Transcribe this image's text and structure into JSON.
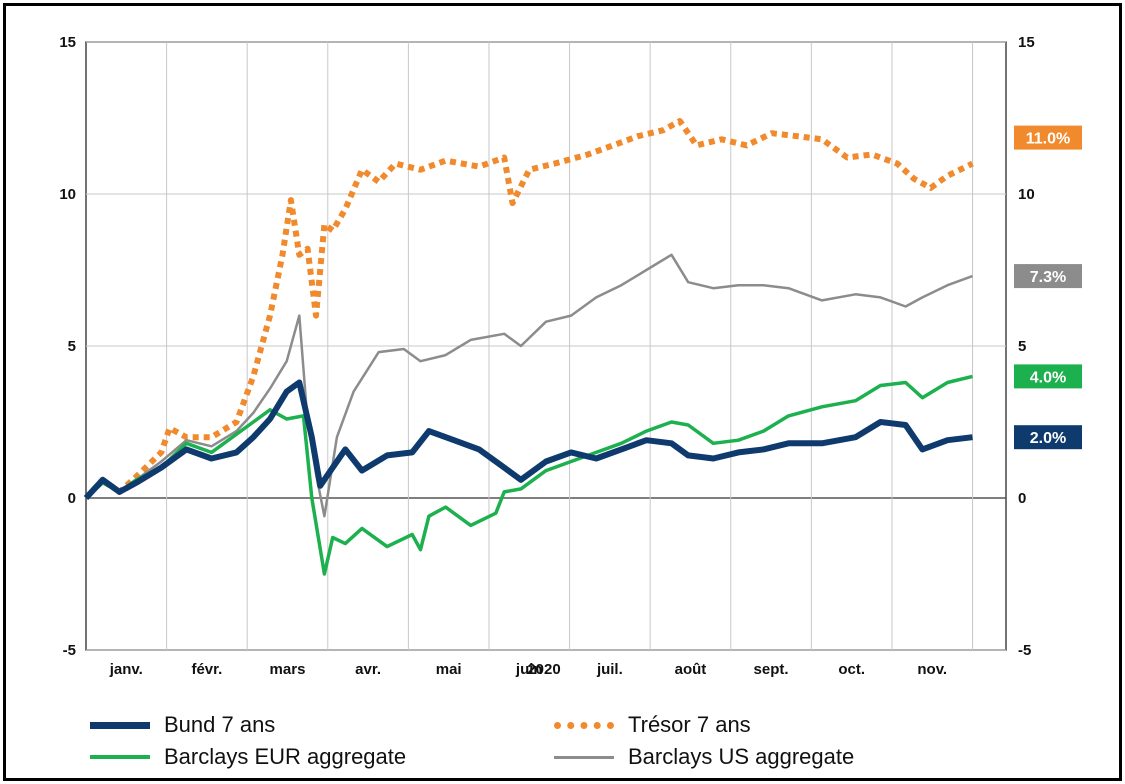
{
  "chart_data": {
    "type": "line",
    "xlabel": "2020",
    "ylabel": "",
    "ylim": [
      -5,
      15
    ],
    "yticks": [
      "-5",
      "0",
      "5",
      "10",
      "15"
    ],
    "xlim": [
      0,
      11
    ],
    "categories": [
      "janv.",
      "févr.",
      "mars",
      "avr.",
      "mai",
      "juin",
      "juil.",
      "août",
      "sept.",
      "oct.",
      "nov."
    ],
    "grid": true,
    "legend_position": "bottom",
    "series": [
      {
        "name": "Bund 7 ans",
        "color": "#0e3a6e",
        "style": "solid-thick",
        "end_label": "2.0%",
        "x": [
          0,
          0.2,
          0.4,
          0.6,
          0.9,
          1.2,
          1.5,
          1.8,
          2.0,
          2.2,
          2.4,
          2.55,
          2.7,
          2.8,
          2.95,
          3.1,
          3.3,
          3.6,
          3.9,
          4.1,
          4.4,
          4.7,
          5.0,
          5.2,
          5.5,
          5.8,
          6.1,
          6.4,
          6.7,
          7.0,
          7.2,
          7.5,
          7.8,
          8.1,
          8.4,
          8.8,
          9.2,
          9.5,
          9.8,
          10.0,
          10.3,
          10.6
        ],
        "y": [
          0,
          0.6,
          0.2,
          0.5,
          1.0,
          1.6,
          1.3,
          1.5,
          2.0,
          2.6,
          3.5,
          3.8,
          2.0,
          0.4,
          1.0,
          1.6,
          0.9,
          1.4,
          1.5,
          2.2,
          1.9,
          1.6,
          1.0,
          0.6,
          1.2,
          1.5,
          1.3,
          1.6,
          1.9,
          1.8,
          1.4,
          1.3,
          1.5,
          1.6,
          1.8,
          1.8,
          2.0,
          2.5,
          2.4,
          1.6,
          1.9,
          2.0
        ]
      },
      {
        "name": "Trésor 7 ans",
        "color": "#f08a2c",
        "style": "dotted-thick",
        "end_label": "11.0%",
        "x": [
          0,
          0.2,
          0.4,
          0.6,
          0.9,
          1.0,
          1.2,
          1.5,
          1.8,
          2.0,
          2.2,
          2.35,
          2.45,
          2.55,
          2.65,
          2.75,
          2.85,
          2.95,
          3.1,
          3.3,
          3.5,
          3.7,
          4.0,
          4.3,
          4.7,
          5.0,
          5.1,
          5.3,
          5.6,
          6.0,
          6.3,
          6.6,
          6.9,
          7.1,
          7.3,
          7.6,
          7.9,
          8.2,
          8.5,
          8.8,
          9.1,
          9.4,
          9.7,
          9.9,
          10.1,
          10.3,
          10.6
        ],
        "y": [
          0,
          0.6,
          0.2,
          0.7,
          1.5,
          2.3,
          2.0,
          2.0,
          2.5,
          4.0,
          6.0,
          8.0,
          9.8,
          8.0,
          8.2,
          6.0,
          9.0,
          8.8,
          9.5,
          10.8,
          10.4,
          11.0,
          10.8,
          11.1,
          10.9,
          11.2,
          9.7,
          10.8,
          11.0,
          11.3,
          11.6,
          11.9,
          12.1,
          12.4,
          11.6,
          11.8,
          11.6,
          12.0,
          11.9,
          11.8,
          11.2,
          11.3,
          11.0,
          10.5,
          10.2,
          10.6,
          11.0
        ]
      },
      {
        "name": "Barclays EUR aggregate",
        "color": "#1db04e",
        "style": "solid",
        "end_label": "4.0%",
        "x": [
          0,
          0.2,
          0.4,
          0.6,
          0.9,
          1.2,
          1.5,
          1.8,
          2.0,
          2.2,
          2.4,
          2.6,
          2.7,
          2.85,
          2.95,
          3.1,
          3.3,
          3.6,
          3.9,
          4.0,
          4.1,
          4.3,
          4.6,
          4.9,
          5.0,
          5.2,
          5.5,
          5.8,
          6.1,
          6.4,
          6.7,
          7.0,
          7.2,
          7.5,
          7.8,
          8.1,
          8.4,
          8.8,
          9.2,
          9.5,
          9.8,
          10.0,
          10.3,
          10.6
        ],
        "y": [
          0,
          0.5,
          0.2,
          0.6,
          1.0,
          1.8,
          1.5,
          2.1,
          2.5,
          2.9,
          2.6,
          2.7,
          0.0,
          -2.5,
          -1.3,
          -1.5,
          -1.0,
          -1.6,
          -1.2,
          -1.7,
          -0.6,
          -0.3,
          -0.9,
          -0.5,
          0.2,
          0.3,
          0.9,
          1.2,
          1.5,
          1.8,
          2.2,
          2.5,
          2.4,
          1.8,
          1.9,
          2.2,
          2.7,
          3.0,
          3.2,
          3.7,
          3.8,
          3.3,
          3.8,
          4.0
        ]
      },
      {
        "name": "Barclays US aggregate",
        "color": "#8c8c8c",
        "style": "solid-thin",
        "end_label": "7.3%",
        "x": [
          0,
          0.2,
          0.4,
          0.6,
          0.9,
          1.2,
          1.5,
          1.8,
          2.0,
          2.2,
          2.4,
          2.55,
          2.65,
          2.75,
          2.85,
          3.0,
          3.2,
          3.5,
          3.8,
          4.0,
          4.3,
          4.6,
          5.0,
          5.2,
          5.5,
          5.8,
          6.1,
          6.4,
          6.7,
          7.0,
          7.2,
          7.5,
          7.8,
          8.1,
          8.4,
          8.8,
          9.2,
          9.5,
          9.8,
          10.0,
          10.3,
          10.6
        ],
        "y": [
          0,
          0.6,
          0.2,
          0.6,
          1.2,
          1.9,
          1.7,
          2.2,
          2.8,
          3.6,
          4.5,
          6.0,
          2.5,
          0.8,
          -0.6,
          2.0,
          3.5,
          4.8,
          4.9,
          4.5,
          4.7,
          5.2,
          5.4,
          5.0,
          5.8,
          6.0,
          6.6,
          7.0,
          7.5,
          8.0,
          7.1,
          6.9,
          7.0,
          7.0,
          6.9,
          6.5,
          6.7,
          6.6,
          6.3,
          6.6,
          7.0,
          7.3
        ]
      }
    ]
  }
}
